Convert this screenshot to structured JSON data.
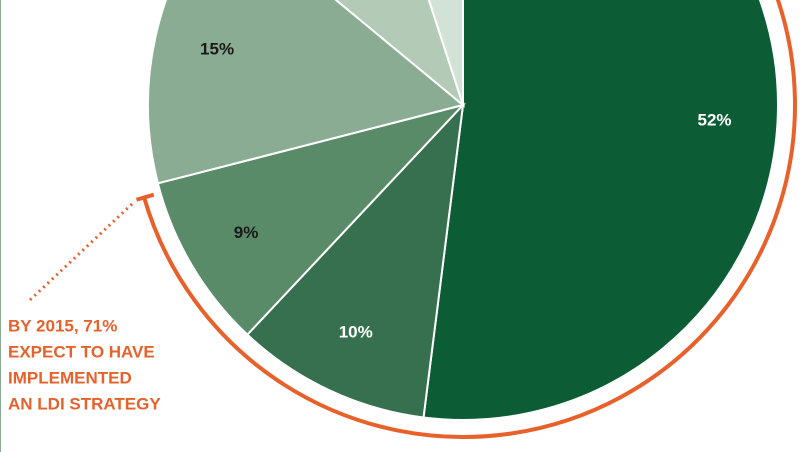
{
  "chart_data": {
    "type": "pie",
    "values": [
      52,
      10,
      9,
      15,
      9,
      5
    ],
    "value_labels": [
      "52%",
      "10%",
      "9%",
      "15%",
      null,
      null
    ],
    "colors": [
      "#0c5d35",
      "#36704f",
      "#5a8b69",
      "#8aac93",
      "#b2cab6",
      "#d3e2d6"
    ],
    "label_colors": [
      "#ffffff",
      "#ffffff",
      "#1a1a1a",
      "#1a1a1a",
      "#1a1a1a",
      "#1a1a1a"
    ],
    "annotation": [
      "BY 2015, 71%",
      "EXPECT TO HAVE",
      "IMPLEMENTED",
      "AN LDI STRATEGY"
    ]
  }
}
